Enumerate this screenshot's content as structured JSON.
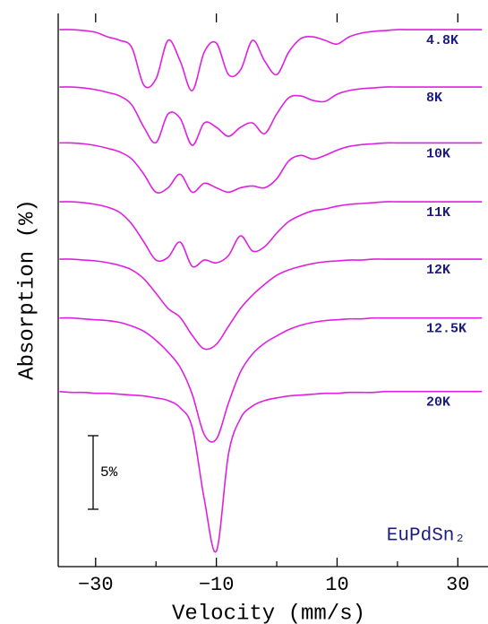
{
  "chart_data": {
    "type": "line",
    "xlabel": "Velocity (mm/s)",
    "ylabel": "Absorption (%)",
    "annotation": "EuPdSn₂",
    "scale_bar": {
      "value": 5,
      "label": "5%"
    },
    "xlim": [
      -36.2,
      35
    ],
    "ylim": [
      0,
      37.6
    ],
    "xticks": [
      {
        "value": -30,
        "label": "−30"
      },
      {
        "value": -10,
        "label": "−10"
      },
      10,
      30
    ],
    "xminor_ticks": [
      -20,
      0,
      20
    ],
    "grid": false,
    "x": [
      -36,
      -34,
      -32,
      -30,
      -28,
      -26,
      -24,
      -22,
      -20,
      -18,
      -16,
      -14,
      -12,
      -10,
      -8,
      -6,
      -4,
      -2,
      0,
      2,
      4,
      6,
      8,
      10,
      12,
      14,
      16,
      18,
      20,
      22,
      24,
      26,
      28,
      30,
      32,
      34
    ],
    "series": [
      {
        "name": "4.8K",
        "color": "#e020e0",
        "values": [
          36.5,
          36.5,
          36.44,
          36.32,
          36.01,
          35.77,
          35.28,
          32.72,
          33.15,
          35.77,
          34.37,
          32.35,
          34.98,
          35.59,
          33.45,
          33.76,
          35.77,
          34.37,
          33.45,
          34.98,
          35.89,
          36.01,
          35.77,
          35.52,
          36.01,
          36.26,
          36.38,
          36.44,
          36.5,
          36.5,
          36.5,
          36.5,
          36.5,
          36.5,
          36.5,
          36.5
        ]
      },
      {
        "name": "8K",
        "color": "#e020e0",
        "values": [
          32.6,
          32.6,
          32.54,
          32.42,
          32.23,
          31.99,
          31.38,
          29.86,
          28.82,
          30.77,
          30.47,
          28.64,
          30.16,
          29.86,
          29.25,
          29.86,
          30.16,
          29.43,
          30.77,
          31.87,
          31.99,
          31.69,
          31.62,
          32.11,
          32.36,
          32.48,
          32.54,
          32.6,
          32.6,
          32.6,
          32.6,
          32.6,
          32.6,
          32.6,
          32.6,
          32.6
        ]
      },
      {
        "name": "10K",
        "color": "#e020e0",
        "values": [
          28.8,
          28.8,
          28.74,
          28.62,
          28.43,
          28.19,
          27.7,
          26.67,
          25.45,
          25.75,
          26.67,
          25.45,
          26.06,
          25.75,
          25.45,
          25.75,
          25.87,
          25.75,
          26.36,
          27.58,
          27.95,
          27.7,
          27.95,
          28.31,
          28.56,
          28.68,
          28.74,
          28.8,
          28.8,
          28.8,
          28.8,
          28.8,
          28.8,
          28.8,
          28.8,
          28.8
        ]
      },
      {
        "name": "11K",
        "color": "#e020e0",
        "values": [
          24.8,
          24.8,
          24.74,
          24.62,
          24.43,
          24.07,
          23.28,
          22.06,
          20.84,
          21.02,
          22.06,
          20.41,
          20.84,
          20.65,
          21.14,
          22.48,
          21.45,
          21.75,
          22.67,
          23.46,
          23.89,
          24.19,
          24.31,
          24.5,
          24.62,
          24.68,
          24.74,
          24.8,
          24.8,
          24.8,
          24.8,
          24.8,
          24.8,
          24.8,
          24.8,
          24.8
        ]
      },
      {
        "name": "12K",
        "color": "#e020e0",
        "values": [
          20.9,
          20.9,
          20.84,
          20.78,
          20.66,
          20.47,
          20.17,
          19.56,
          18.58,
          17.55,
          16.94,
          15.72,
          14.8,
          15.11,
          16.33,
          17.55,
          18.46,
          19.19,
          19.8,
          20.17,
          20.41,
          20.6,
          20.72,
          20.78,
          20.84,
          20.84,
          20.9,
          20.9,
          20.9,
          20.9,
          20.9,
          20.9,
          20.9,
          20.9,
          20.9,
          20.9
        ]
      },
      {
        "name": "12.5K",
        "color": "#e020e0",
        "values": [
          16.9,
          16.9,
          16.84,
          16.78,
          16.72,
          16.6,
          16.35,
          15.99,
          15.38,
          14.58,
          13.55,
          11.72,
          8.97,
          8.67,
          11.11,
          13.24,
          14.46,
          15.19,
          15.68,
          16.11,
          16.41,
          16.6,
          16.72,
          16.78,
          16.84,
          16.84,
          16.9,
          16.9,
          16.9,
          16.9,
          16.9,
          16.9,
          16.9,
          16.9,
          16.9,
          16.9
        ]
      },
      {
        "name": "20K",
        "color": "#e020e0",
        "values": [
          11.9,
          11.84,
          11.84,
          11.78,
          11.78,
          11.72,
          11.66,
          11.6,
          11.47,
          11.29,
          10.8,
          9.46,
          4.58,
          1.05,
          7.63,
          10.07,
          10.92,
          11.29,
          11.47,
          11.6,
          11.66,
          11.72,
          11.78,
          11.78,
          11.84,
          11.84,
          11.84,
          11.9,
          11.9,
          11.9,
          11.9,
          11.9,
          11.9,
          11.9,
          11.9,
          11.9
        ]
      }
    ]
  }
}
